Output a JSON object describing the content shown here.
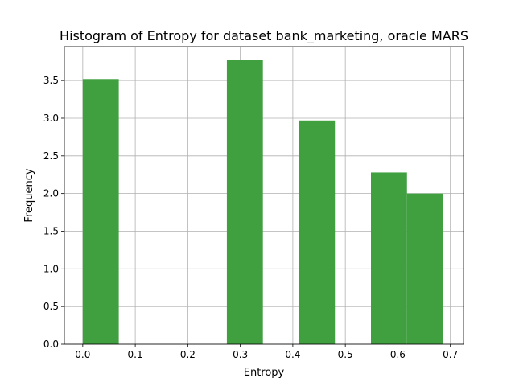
{
  "chart_data": {
    "type": "bar",
    "title": "Histogram of Entropy for dataset bank_marketing, oracle MARS",
    "xlabel": "Entropy",
    "ylabel": "Frequency",
    "xlim": [
      -0.035,
      0.725
    ],
    "ylim": [
      0,
      3.95
    ],
    "xticks": [
      0.0,
      0.1,
      0.2,
      0.3,
      0.4,
      0.5,
      0.6,
      0.7
    ],
    "xtick_labels": [
      "0.0",
      "0.1",
      "0.2",
      "0.3",
      "0.4",
      "0.5",
      "0.6",
      "0.7"
    ],
    "yticks": [
      0.0,
      0.5,
      1.0,
      1.5,
      2.0,
      2.5,
      3.0,
      3.5
    ],
    "ytick_labels": [
      "0.0",
      "0.5",
      "1.0",
      "1.5",
      "2.0",
      "2.5",
      "3.0",
      "3.5"
    ],
    "grid": true,
    "bin_edges": [
      0.0,
      0.0686,
      0.1372,
      0.2058,
      0.2744,
      0.343,
      0.4116,
      0.4802,
      0.5488,
      0.6174,
      0.686
    ],
    "values": [
      3.52,
      0,
      0,
      0,
      3.77,
      0,
      2.97,
      0,
      2.28,
      2.0
    ],
    "color": "#40a040"
  }
}
